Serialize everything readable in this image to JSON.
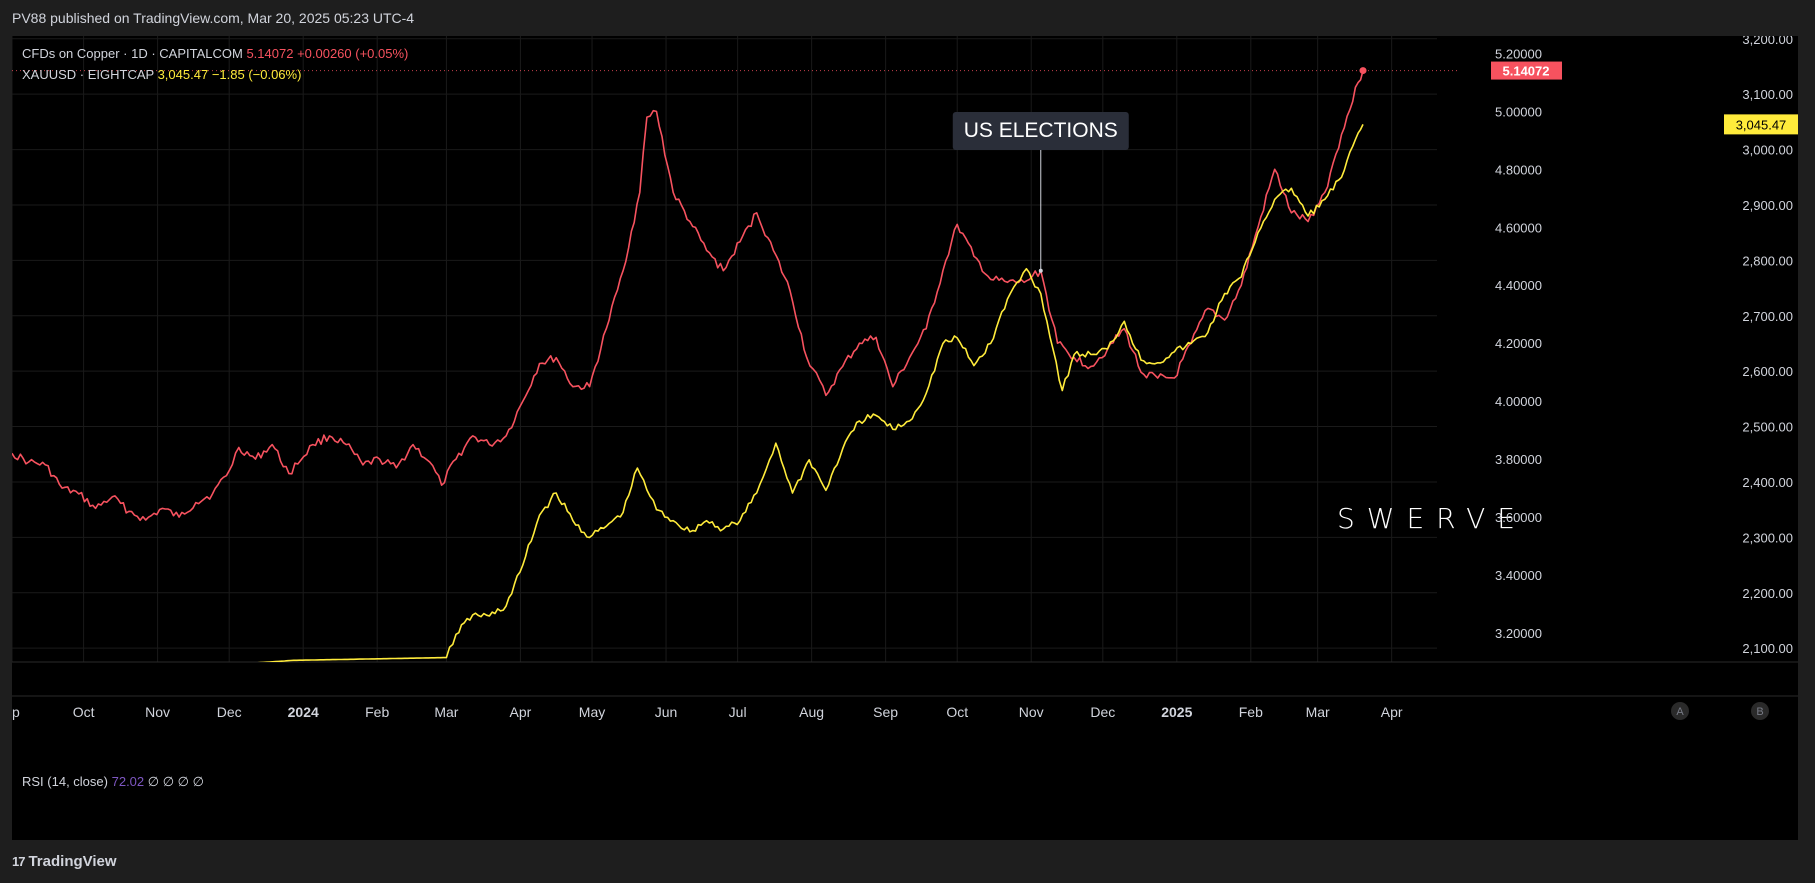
{
  "header": {
    "published": "PV88 published on TradingView.com, Mar 20, 2025 05:23 UTC-4"
  },
  "legend": {
    "copper": {
      "name": "CFDs on Copper · 1D · CAPITALCOM",
      "price": "5.14072",
      "change": "+0.00260 (+0.05%)"
    },
    "gold": {
      "name": "XAUUSD · EIGHTCAP",
      "price": "3,045.47",
      "change": "−1.85 (−0.06%)"
    }
  },
  "rsi": {
    "name": "RSI (14, close)",
    "value": "72.02",
    "extra": "∅ ∅ ∅ ∅"
  },
  "annotation": {
    "label": "US ELECTIONS",
    "date": "2024-11-05"
  },
  "watermark": "SWERVE",
  "footer": {
    "brand": "TradingView",
    "brand_mark": "17"
  },
  "buttons": {
    "a": "A",
    "b": "B"
  },
  "colors": {
    "copper": "#f7525f",
    "gold": "#ffeb3b",
    "background": "#000000",
    "grid": "#1a1a1a",
    "rsi": "#7e57c2"
  },
  "chart_data": {
    "type": "line",
    "x_type": "date",
    "x_range": [
      "2023-09-01",
      "2025-04-20"
    ],
    "x_ticks": [
      {
        "label": "ep",
        "date": "2023-09-01"
      },
      {
        "label": "Oct",
        "date": "2023-10-01"
      },
      {
        "label": "Nov",
        "date": "2023-11-01"
      },
      {
        "label": "Dec",
        "date": "2023-12-01"
      },
      {
        "label": "2024",
        "date": "2024-01-01",
        "bold": true
      },
      {
        "label": "Feb",
        "date": "2024-02-01"
      },
      {
        "label": "Mar",
        "date": "2024-03-01"
      },
      {
        "label": "Apr",
        "date": "2024-04-01"
      },
      {
        "label": "May",
        "date": "2024-05-01"
      },
      {
        "label": "Jun",
        "date": "2024-06-01"
      },
      {
        "label": "Jul",
        "date": "2024-07-01"
      },
      {
        "label": "Aug",
        "date": "2024-08-01"
      },
      {
        "label": "Sep",
        "date": "2024-09-01"
      },
      {
        "label": "Oct",
        "date": "2024-10-01"
      },
      {
        "label": "Nov",
        "date": "2024-11-01"
      },
      {
        "label": "Dec",
        "date": "2024-12-01"
      },
      {
        "label": "2025",
        "date": "2025-01-01",
        "bold": true
      },
      {
        "label": "Feb",
        "date": "2025-02-01"
      },
      {
        "label": "Mar",
        "date": "2025-03-01"
      },
      {
        "label": "Apr",
        "date": "2025-04-01"
      }
    ],
    "axes": {
      "copper": {
        "range": [
          3.1,
          5.26
        ],
        "ticks": [
          "3.20000",
          "3.40000",
          "3.60000",
          "3.80000",
          "4.00000",
          "4.20000",
          "4.40000",
          "4.60000",
          "4.80000",
          "5.00000",
          "5.20000"
        ]
      },
      "gold": {
        "range": [
          2075,
          3205
        ],
        "ticks": [
          "2,100.00",
          "2,200.00",
          "2,300.00",
          "2,400.00",
          "2,500.00",
          "2,600.00",
          "2,700.00",
          "2,800.00",
          "2,900.00",
          "3,000.00",
          "3,100.00",
          "3,200.00"
        ]
      }
    },
    "price_tags": {
      "copper": "5.14072",
      "gold": "3,045.47"
    },
    "series": [
      {
        "axis": "copper",
        "color": "#f7525f",
        "points": [
          [
            "2023-09-01",
            3.82
          ],
          [
            "2023-09-08",
            3.79
          ],
          [
            "2023-09-15",
            3.78
          ],
          [
            "2023-09-22",
            3.7
          ],
          [
            "2023-09-29",
            3.68
          ],
          [
            "2023-10-06",
            3.63
          ],
          [
            "2023-10-13",
            3.67
          ],
          [
            "2023-10-20",
            3.62
          ],
          [
            "2023-10-27",
            3.59
          ],
          [
            "2023-11-03",
            3.63
          ],
          [
            "2023-11-10",
            3.6
          ],
          [
            "2023-11-17",
            3.65
          ],
          [
            "2023-11-24",
            3.68
          ],
          [
            "2023-12-01",
            3.76
          ],
          [
            "2023-12-05",
            3.84
          ],
          [
            "2023-12-12",
            3.8
          ],
          [
            "2023-12-19",
            3.85
          ],
          [
            "2023-12-26",
            3.75
          ],
          [
            "2024-01-05",
            3.85
          ],
          [
            "2024-01-12",
            3.88
          ],
          [
            "2024-01-19",
            3.85
          ],
          [
            "2024-01-26",
            3.78
          ],
          [
            "2024-02-02",
            3.8
          ],
          [
            "2024-02-09",
            3.77
          ],
          [
            "2024-02-16",
            3.85
          ],
          [
            "2024-02-23",
            3.79
          ],
          [
            "2024-02-28",
            3.71
          ],
          [
            "2024-03-05",
            3.8
          ],
          [
            "2024-03-12",
            3.88
          ],
          [
            "2024-03-19",
            3.85
          ],
          [
            "2024-03-26",
            3.88
          ],
          [
            "2024-04-02",
            4.0
          ],
          [
            "2024-04-09",
            4.13
          ],
          [
            "2024-04-16",
            4.15
          ],
          [
            "2024-04-23",
            4.05
          ],
          [
            "2024-04-30",
            4.05
          ],
          [
            "2024-05-07",
            4.25
          ],
          [
            "2024-05-14",
            4.45
          ],
          [
            "2024-05-21",
            4.72
          ],
          [
            "2024-05-24",
            4.98
          ],
          [
            "2024-05-28",
            5.0
          ],
          [
            "2024-06-04",
            4.72
          ],
          [
            "2024-06-11",
            4.62
          ],
          [
            "2024-06-18",
            4.52
          ],
          [
            "2024-06-25",
            4.45
          ],
          [
            "2024-07-02",
            4.55
          ],
          [
            "2024-07-09",
            4.65
          ],
          [
            "2024-07-16",
            4.52
          ],
          [
            "2024-07-23",
            4.38
          ],
          [
            "2024-07-30",
            4.15
          ],
          [
            "2024-08-07",
            4.02
          ],
          [
            "2024-08-14",
            4.12
          ],
          [
            "2024-08-21",
            4.2
          ],
          [
            "2024-08-28",
            4.22
          ],
          [
            "2024-09-04",
            4.05
          ],
          [
            "2024-09-11",
            4.15
          ],
          [
            "2024-09-18",
            4.25
          ],
          [
            "2024-09-25",
            4.45
          ],
          [
            "2024-10-01",
            4.61
          ],
          [
            "2024-10-08",
            4.5
          ],
          [
            "2024-10-15",
            4.42
          ],
          [
            "2024-10-22",
            4.41
          ],
          [
            "2024-10-29",
            4.41
          ],
          [
            "2024-11-05",
            4.45
          ],
          [
            "2024-11-12",
            4.2
          ],
          [
            "2024-11-19",
            4.15
          ],
          [
            "2024-11-26",
            4.12
          ],
          [
            "2024-12-03",
            4.18
          ],
          [
            "2024-12-10",
            4.25
          ],
          [
            "2024-12-17",
            4.1
          ],
          [
            "2024-12-24",
            4.08
          ],
          [
            "2024-12-31",
            4.08
          ],
          [
            "2025-01-07",
            4.2
          ],
          [
            "2025-01-14",
            4.32
          ],
          [
            "2025-01-21",
            4.28
          ],
          [
            "2025-01-28",
            4.4
          ],
          [
            "2025-02-04",
            4.6
          ],
          [
            "2025-02-11",
            4.8
          ],
          [
            "2025-02-18",
            4.65
          ],
          [
            "2025-02-25",
            4.62
          ],
          [
            "2025-03-04",
            4.72
          ],
          [
            "2025-03-11",
            4.92
          ],
          [
            "2025-03-18",
            5.1
          ],
          [
            "2025-03-20",
            5.14072
          ]
        ]
      },
      {
        "axis": "gold",
        "color": "#ffeb3b",
        "points": [
          [
            "2023-12-04",
            2071
          ],
          [
            "2023-12-28",
            2078
          ],
          [
            "2024-03-01",
            2083
          ],
          [
            "2024-03-05",
            2125
          ],
          [
            "2024-03-12",
            2160
          ],
          [
            "2024-03-19",
            2158
          ],
          [
            "2024-03-26",
            2176
          ],
          [
            "2024-04-02",
            2250
          ],
          [
            "2024-04-09",
            2340
          ],
          [
            "2024-04-16",
            2380
          ],
          [
            "2024-04-23",
            2330
          ],
          [
            "2024-04-30",
            2300
          ],
          [
            "2024-05-07",
            2320
          ],
          [
            "2024-05-14",
            2345
          ],
          [
            "2024-05-20",
            2425
          ],
          [
            "2024-05-28",
            2350
          ],
          [
            "2024-06-04",
            2330
          ],
          [
            "2024-06-11",
            2310
          ],
          [
            "2024-06-18",
            2330
          ],
          [
            "2024-06-25",
            2315
          ],
          [
            "2024-07-02",
            2330
          ],
          [
            "2024-07-09",
            2380
          ],
          [
            "2024-07-17",
            2470
          ],
          [
            "2024-07-24",
            2380
          ],
          [
            "2024-07-31",
            2440
          ],
          [
            "2024-08-07",
            2385
          ],
          [
            "2024-08-14",
            2460
          ],
          [
            "2024-08-21",
            2510
          ],
          [
            "2024-08-28",
            2520
          ],
          [
            "2024-09-04",
            2495
          ],
          [
            "2024-09-11",
            2510
          ],
          [
            "2024-09-18",
            2560
          ],
          [
            "2024-09-25",
            2650
          ],
          [
            "2024-10-01",
            2660
          ],
          [
            "2024-10-08",
            2610
          ],
          [
            "2024-10-15",
            2650
          ],
          [
            "2024-10-22",
            2730
          ],
          [
            "2024-10-30",
            2785
          ],
          [
            "2024-11-05",
            2740
          ],
          [
            "2024-11-14",
            2565
          ],
          [
            "2024-11-19",
            2630
          ],
          [
            "2024-11-26",
            2630
          ],
          [
            "2024-12-03",
            2640
          ],
          [
            "2024-12-10",
            2690
          ],
          [
            "2024-12-17",
            2620
          ],
          [
            "2024-12-24",
            2615
          ],
          [
            "2024-12-31",
            2635
          ],
          [
            "2025-01-07",
            2650
          ],
          [
            "2025-01-14",
            2670
          ],
          [
            "2025-01-21",
            2740
          ],
          [
            "2025-01-28",
            2770
          ],
          [
            "2025-02-04",
            2850
          ],
          [
            "2025-02-11",
            2910
          ],
          [
            "2025-02-18",
            2930
          ],
          [
            "2025-02-25",
            2880
          ],
          [
            "2025-03-04",
            2910
          ],
          [
            "2025-03-11",
            2950
          ],
          [
            "2025-03-18",
            3030
          ],
          [
            "2025-03-20",
            3045.47
          ]
        ]
      }
    ]
  }
}
